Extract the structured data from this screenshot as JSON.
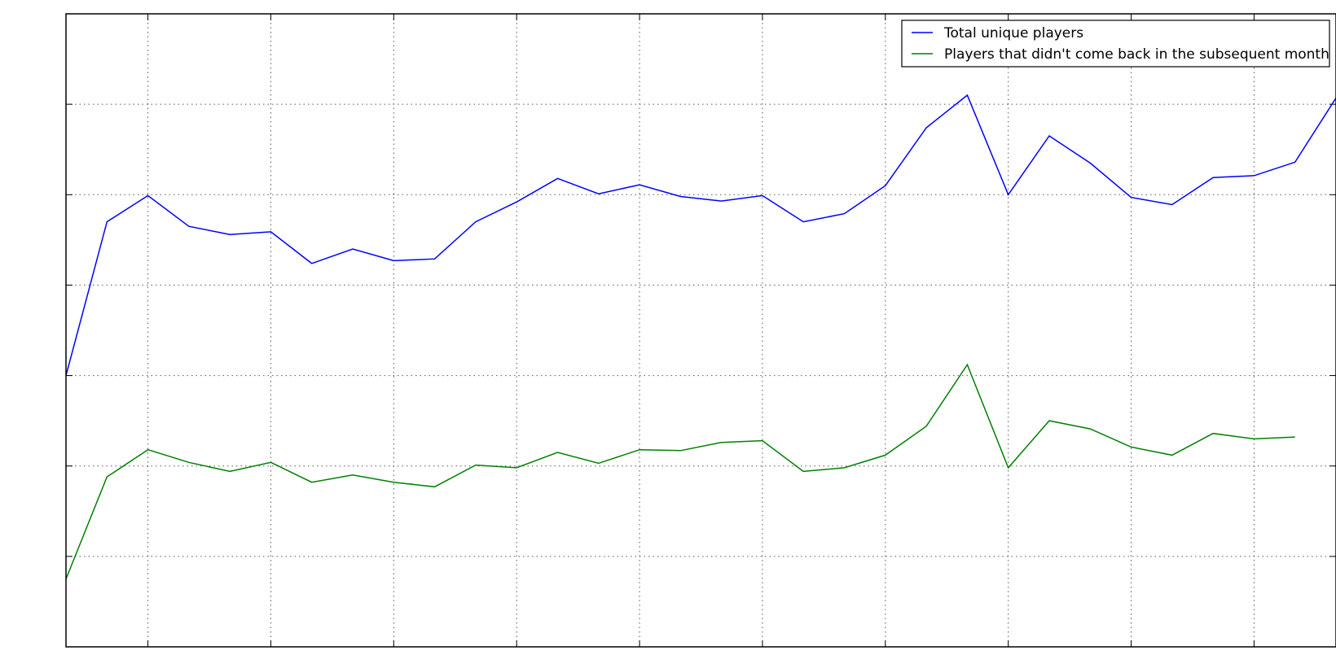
{
  "chart_data": {
    "type": "line",
    "title": "",
    "xlabel": "",
    "ylabel": "",
    "grid": true,
    "legend_position": "top-right",
    "x": [
      0,
      1,
      2,
      3,
      4,
      5,
      6,
      7,
      8,
      9,
      10,
      11,
      12,
      13,
      14,
      15,
      16,
      17,
      18,
      19,
      20,
      21,
      22,
      23,
      24,
      25,
      26,
      27,
      28,
      29,
      30,
      31
    ],
    "xlim": [
      0,
      31
    ],
    "ylim": [
      0,
      7
    ],
    "x_grid": [
      2,
      5,
      8,
      11,
      14,
      17,
      20,
      23,
      26,
      29
    ],
    "y_grid": [
      1,
      2,
      3,
      4,
      5,
      6
    ],
    "series": [
      {
        "name": "Total unique players",
        "color": "#0000ff",
        "values": [
          3.0,
          4.7,
          4.99,
          4.65,
          4.56,
          4.59,
          4.24,
          4.4,
          4.27,
          4.29,
          4.7,
          4.92,
          5.18,
          5.01,
          5.11,
          4.98,
          4.93,
          4.99,
          4.7,
          4.79,
          5.1,
          5.74,
          6.1,
          5.0,
          5.65,
          5.35,
          4.97,
          4.89,
          5.19,
          5.21,
          5.36,
          6.07
        ]
      },
      {
        "name": "Players that didn't come back in the subsequent month",
        "color": "#008000",
        "values": [
          0.75,
          1.88,
          2.18,
          2.04,
          1.94,
          2.04,
          1.82,
          1.9,
          1.82,
          1.77,
          2.01,
          1.98,
          2.15,
          2.03,
          2.18,
          2.17,
          2.26,
          2.28,
          1.94,
          1.98,
          2.12,
          2.44,
          3.12,
          1.98,
          2.5,
          2.41,
          2.21,
          2.12,
          2.36,
          2.3,
          2.32,
          null
        ]
      }
    ]
  }
}
